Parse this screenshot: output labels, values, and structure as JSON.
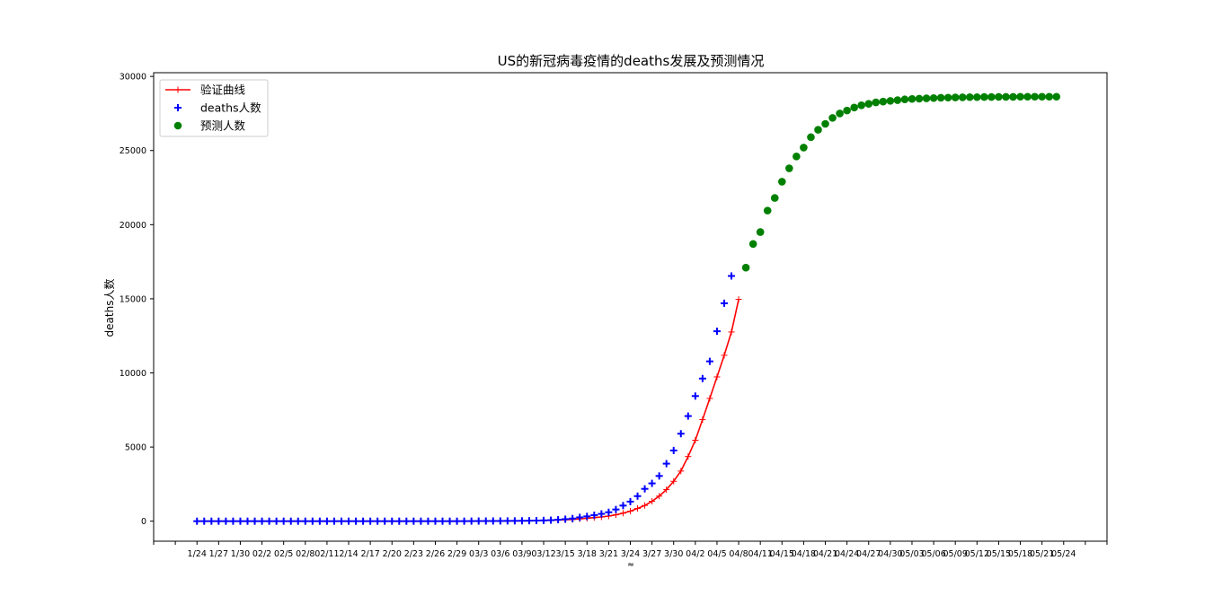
{
  "chart_data": {
    "type": "line",
    "title": "US的新冠病毒疫情的deaths发展及预测情况",
    "xlabel": "≈",
    "ylabel": "deaths人数",
    "ylim": [
      -1350,
      30250
    ],
    "xlim": [
      -6,
      126
    ],
    "grid": false,
    "legend_position": "top-left",
    "y_ticks": [
      0,
      5000,
      10000,
      15000,
      20000,
      25000,
      30000
    ],
    "x_ticks": [
      {
        "i": 0,
        "label": "1/24"
      },
      {
        "i": 3,
        "label": "1/27"
      },
      {
        "i": 6,
        "label": "1/30"
      },
      {
        "i": 9,
        "label": "02/2"
      },
      {
        "i": 12,
        "label": "02/5"
      },
      {
        "i": 15,
        "label": "02/8"
      },
      {
        "i": 18,
        "label": "02/11"
      },
      {
        "i": 21,
        "label": "2/14"
      },
      {
        "i": 24,
        "label": "2/17"
      },
      {
        "i": 27,
        "label": "2/20"
      },
      {
        "i": 30,
        "label": "2/23"
      },
      {
        "i": 33,
        "label": "2/26"
      },
      {
        "i": 36,
        "label": "2/29"
      },
      {
        "i": 39,
        "label": "03/3"
      },
      {
        "i": 42,
        "label": "03/6"
      },
      {
        "i": 45,
        "label": "03/9"
      },
      {
        "i": 48,
        "label": "03/12"
      },
      {
        "i": 51,
        "label": "3/15"
      },
      {
        "i": 54,
        "label": "3/18"
      },
      {
        "i": 57,
        "label": "3/21"
      },
      {
        "i": 60,
        "label": "3/24"
      },
      {
        "i": 63,
        "label": "3/27"
      },
      {
        "i": 66,
        "label": "3/30"
      },
      {
        "i": 69,
        "label": "04/2"
      },
      {
        "i": 72,
        "label": "04/5"
      },
      {
        "i": 75,
        "label": "04/8"
      },
      {
        "i": 78,
        "label": "04/11"
      },
      {
        "i": 81,
        "label": "04/15"
      },
      {
        "i": 84,
        "label": "04/18"
      },
      {
        "i": 87,
        "label": "04/21"
      },
      {
        "i": 90,
        "label": "04/24"
      },
      {
        "i": 93,
        "label": "04/27"
      },
      {
        "i": 96,
        "label": "04/30"
      },
      {
        "i": 99,
        "label": "05/03"
      },
      {
        "i": 102,
        "label": "05/06"
      },
      {
        "i": 105,
        "label": "05/09"
      },
      {
        "i": 108,
        "label": "05/12"
      },
      {
        "i": 111,
        "label": "05/15"
      },
      {
        "i": 114,
        "label": "05/18"
      },
      {
        "i": 117,
        "label": "05/21"
      },
      {
        "i": 120,
        "label": "05/24"
      }
    ],
    "x_minor_ticks": [
      -6,
      -3,
      123,
      126
    ],
    "series": [
      {
        "name": "验证曲线",
        "kind": "line",
        "color": "#ff0000",
        "marker": "+",
        "x_start": 0,
        "values": [
          0,
          0,
          0,
          0,
          0,
          0,
          0,
          0,
          0,
          0,
          0,
          0,
          0,
          0,
          0,
          0,
          0,
          0,
          0,
          0,
          0,
          0,
          0,
          0,
          0,
          0,
          0,
          0,
          0,
          0,
          0,
          0,
          0,
          0,
          0,
          0,
          1,
          2,
          4,
          6,
          9,
          11,
          14,
          17,
          21,
          26,
          31,
          39,
          49,
          60,
          75,
          95,
          120,
          160,
          200,
          240,
          285,
          345,
          430,
          540,
          680,
          860,
          1060,
          1340,
          1690,
          2130,
          2690,
          3380,
          4360,
          5460,
          6850,
          8280,
          9730,
          11190,
          12760,
          14960
        ]
      },
      {
        "name": "deaths人数",
        "kind": "scatter",
        "color": "#0000ff",
        "marker": "+",
        "x_start": 0,
        "values": [
          0,
          0,
          0,
          0,
          0,
          0,
          0,
          0,
          0,
          0,
          0,
          0,
          0,
          0,
          0,
          0,
          0,
          0,
          0,
          0,
          0,
          0,
          0,
          0,
          0,
          0,
          0,
          0,
          0,
          0,
          0,
          0,
          0,
          0,
          0,
          0,
          1,
          2,
          6,
          9,
          11,
          12,
          15,
          19,
          22,
          26,
          31,
          41,
          53,
          68,
          99,
          136,
          180,
          257,
          323,
          404,
          493,
          603,
          789,
          1053,
          1320,
          1690,
          2180,
          2550,
          3050,
          3880,
          4770,
          5900,
          7090,
          8440,
          9620,
          10780,
          12810,
          14700,
          16540
        ]
      },
      {
        "name": "预测人数",
        "kind": "scatter",
        "color": "#008000",
        "marker": "o",
        "x_start": 76,
        "values": [
          17100,
          18700,
          19500,
          20950,
          21800,
          22900,
          23800,
          24600,
          25200,
          25900,
          26400,
          26800,
          27200,
          27500,
          27700,
          27900,
          28050,
          28150,
          28250,
          28300,
          28350,
          28400,
          28450,
          28480,
          28500,
          28520,
          28540,
          28560,
          28570,
          28580,
          28590,
          28600,
          28600,
          28610,
          28610,
          28620,
          28620,
          28620,
          28630,
          28630,
          28630,
          28630,
          28630,
          28630
        ]
      }
    ]
  }
}
